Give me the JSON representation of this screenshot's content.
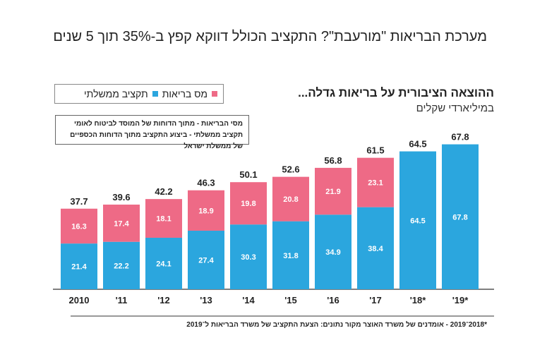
{
  "title": "מערכת הבריאות \"מורעבת\"? התקציב הכולל דווקא קפץ ב-35% תוך 5 שנים",
  "chart_data": {
    "type": "bar",
    "stacked": true,
    "title": "ההוצאה הציבורית על בריאות גדלה...",
    "subtitle": "במיליארדי שקלים",
    "categories": [
      "2010",
      "'11",
      "'12",
      "'13",
      "'14",
      "'15",
      "'16",
      "'17",
      "'18*",
      "'19*"
    ],
    "series": [
      {
        "name": "תקציב ממשלתי",
        "color": "#2ba6de",
        "values": [
          21.4,
          22.2,
          24.1,
          27.4,
          30.3,
          31.8,
          34.9,
          38.4,
          64.5,
          67.8
        ]
      },
      {
        "name": "מס בריאות",
        "color": "#ee6a86",
        "values": [
          16.3,
          17.4,
          18.1,
          18.9,
          19.8,
          20.8,
          21.9,
          23.1,
          null,
          null
        ]
      }
    ],
    "totals": [
      37.7,
      39.6,
      42.2,
      46.3,
      50.1,
      52.6,
      56.8,
      61.5,
      64.5,
      67.8
    ],
    "ylim": [
      0,
      70
    ],
    "grid": false,
    "legend_position": "top-left",
    "notes": [
      "מסי הבריאות -  מתוך הדוחות של המוסד לביטוח לאומי",
      "תקציב ממשלתי - ביצוע התקציב מתוך הדוחות הכספיים של ממשלת ישראל"
    ]
  },
  "footnote": "*2018־2019 - אומדנים של משרד האוצר      מקור נתונים: הצעת התקציב של משרד הבריאות ל־2019"
}
